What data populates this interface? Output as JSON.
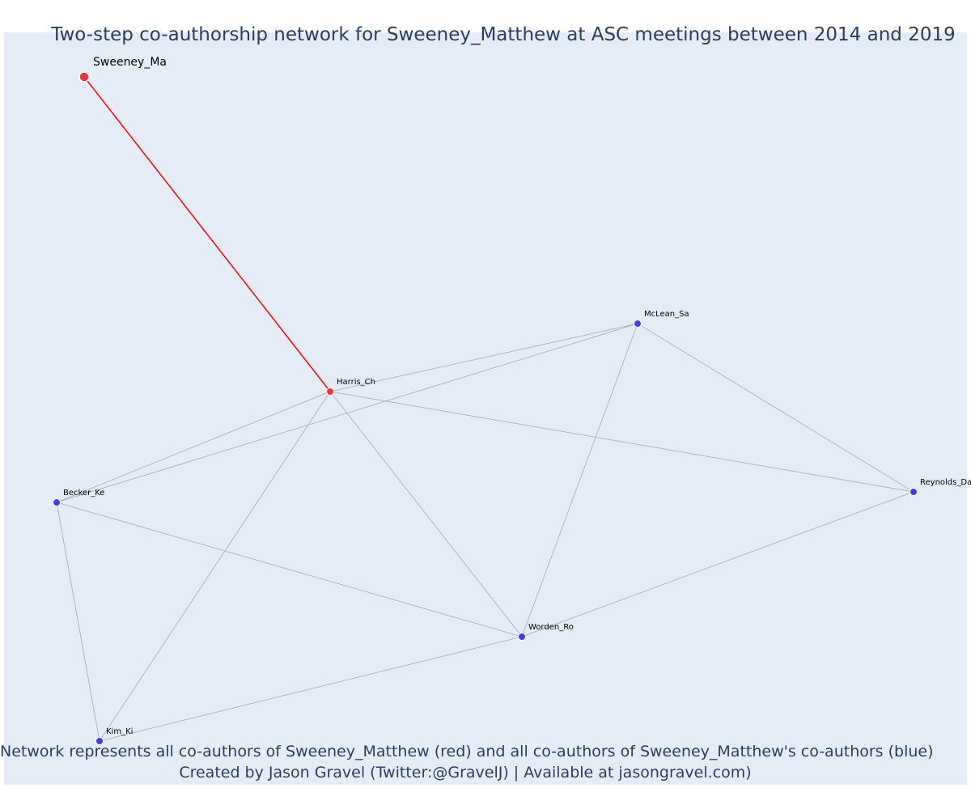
{
  "figure": {
    "title": "Two-step co-authorship network for Sweeney_Matthew at ASC meetings between 2014 and 2019",
    "caption_line1": "Network represents all co-authors of Sweeney_Matthew (red) and all co-authors of Sweeney_Matthew's co-authors (blue)",
    "caption_line2": "Created by Jason Gravel (Twitter:@GravelJ) | Available at jasongravel.com)",
    "colors": {
      "background": "#e5ecf6",
      "ego_node": "#ee3338",
      "coauthor_node": "#3d3dea",
      "ego_edge": "#ff0000",
      "other_edge": "#b0b4c8",
      "text": "#2a3f5f"
    }
  },
  "nodes": [
    {
      "id": "sweeney",
      "label": "Sweeney_Ma",
      "group": "red",
      "size": "large"
    },
    {
      "id": "harris",
      "label": "Harris_Ch",
      "group": "red",
      "size": "small"
    },
    {
      "id": "mclean",
      "label": "McLean_Sa",
      "group": "blue",
      "size": "small"
    },
    {
      "id": "becker",
      "label": "Becker_Ke",
      "group": "blue",
      "size": "small"
    },
    {
      "id": "reynolds",
      "label": "Reynolds_Da",
      "group": "blue",
      "size": "small"
    },
    {
      "id": "worden",
      "label": "Worden_Ro",
      "group": "blue",
      "size": "small"
    },
    {
      "id": "kim",
      "label": "Kim_Ki",
      "group": "blue",
      "size": "small"
    }
  ],
  "edges": [
    {
      "source": "sweeney",
      "target": "harris",
      "type": "ego"
    },
    {
      "source": "harris",
      "target": "mclean",
      "type": "other"
    },
    {
      "source": "harris",
      "target": "becker",
      "type": "other"
    },
    {
      "source": "harris",
      "target": "reynolds",
      "type": "other"
    },
    {
      "source": "harris",
      "target": "worden",
      "type": "other"
    },
    {
      "source": "harris",
      "target": "kim",
      "type": "other"
    },
    {
      "source": "mclean",
      "target": "becker",
      "type": "other"
    },
    {
      "source": "mclean",
      "target": "worden",
      "type": "other"
    },
    {
      "source": "mclean",
      "target": "reynolds",
      "type": "other"
    },
    {
      "source": "becker",
      "target": "worden",
      "type": "other"
    },
    {
      "source": "becker",
      "target": "kim",
      "type": "other"
    },
    {
      "source": "worden",
      "target": "reynolds",
      "type": "other"
    },
    {
      "source": "worden",
      "target": "kim",
      "type": "other"
    }
  ]
}
